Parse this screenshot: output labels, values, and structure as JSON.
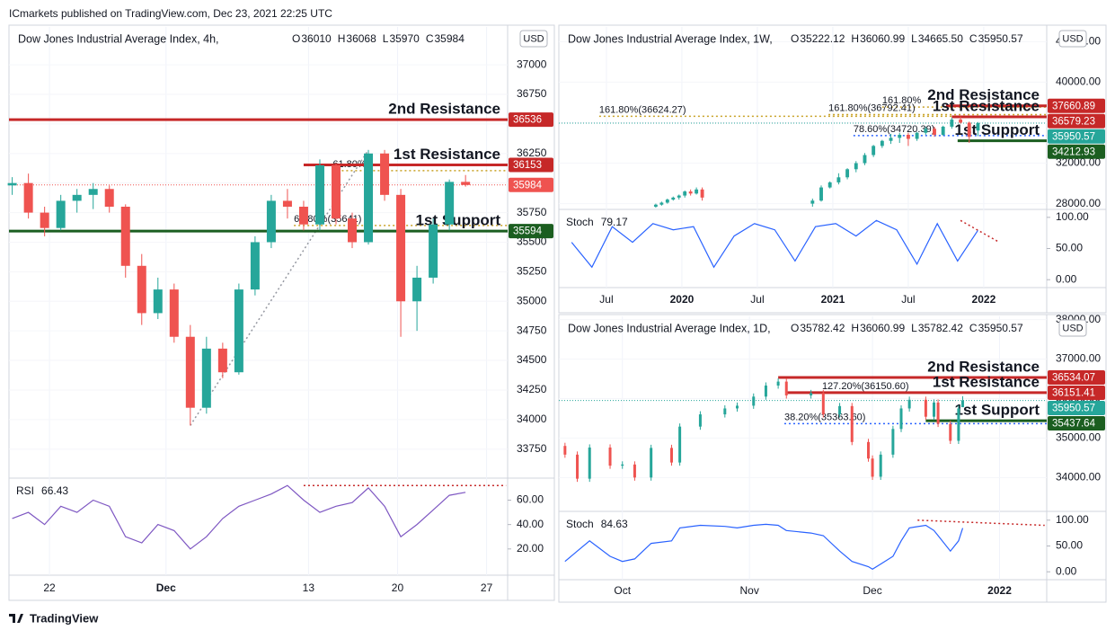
{
  "header": "ICmarkets published on TradingView.com, Dec 23, 2021 22:25 UTC",
  "brand": "TradingView",
  "chart_data": [
    {
      "type": "candlestick",
      "title": "Dow Jones Industrial Average Index, 4h,",
      "ohlc": [
        {
          "key": "O",
          "value": 36010
        },
        {
          "key": "H",
          "value": 36068
        },
        {
          "key": "L",
          "value": 35970
        },
        {
          "key": "C",
          "value": 35984
        }
      ],
      "ohlc_color": "#ef5350",
      "currency": "USD",
      "up_color": "#26a69a",
      "down_color": "#ef5350",
      "x": [
        0,
        1,
        2,
        3,
        4,
        5,
        6,
        7,
        8,
        9,
        10,
        11,
        12,
        13,
        14,
        15,
        16,
        17,
        18,
        19,
        20,
        21,
        22,
        23,
        24,
        25,
        26,
        27,
        28
      ],
      "open": [
        35980,
        36000,
        35750,
        35620,
        35850,
        35900,
        35950,
        35800,
        35300,
        34900,
        35100,
        34700,
        34100,
        34600,
        34400,
        35100,
        35500,
        35850,
        35800,
        35650,
        36150,
        35700,
        35500,
        36250,
        35900,
        35000,
        35200,
        35650,
        36010
      ],
      "high": [
        36050,
        36080,
        35800,
        35900,
        35950,
        36000,
        35980,
        35820,
        35400,
        35200,
        35150,
        34800,
        34700,
        34650,
        35150,
        35550,
        35900,
        35950,
        35850,
        36200,
        36170,
        35750,
        36280,
        36280,
        35950,
        35300,
        35700,
        36030,
        36068
      ],
      "low": [
        35900,
        35700,
        35550,
        35600,
        35750,
        35780,
        35750,
        35200,
        34800,
        34850,
        34650,
        33950,
        34050,
        34350,
        34380,
        35050,
        35450,
        35700,
        35600,
        35600,
        35650,
        35450,
        35480,
        35850,
        34700,
        34750,
        35150,
        35600,
        35970
      ],
      "close": [
        36000,
        35750,
        35620,
        35850,
        35900,
        35950,
        35800,
        35300,
        34900,
        35100,
        34700,
        34100,
        34600,
        34400,
        35100,
        35500,
        35850,
        35800,
        35650,
        36150,
        35700,
        35500,
        36250,
        35900,
        35000,
        35200,
        35650,
        36010,
        35984
      ],
      "xlim": [
        -0.2,
        30.6
      ],
      "xticks": [
        {
          "value": 2.3,
          "label": "22"
        },
        {
          "value": 9.5,
          "label": "Dec",
          "bold": true
        },
        {
          "value": 18.3,
          "label": "13"
        },
        {
          "value": 23.8,
          "label": "20"
        },
        {
          "value": 29.3,
          "label": "27"
        }
      ],
      "ylim": [
        33520,
        37320
      ],
      "yticks": [
        33750,
        34000,
        34250,
        34500,
        34750,
        35000,
        35250,
        35500,
        35750,
        36000,
        36250,
        36500,
        36750,
        37000
      ],
      "levels": [
        {
          "name": "2nd Resistance",
          "value": 36536,
          "color": "#c62828",
          "x": -0.2
        },
        {
          "name": "1st Resistance",
          "value": 36153,
          "color": "#c62828",
          "x": 18
        },
        {
          "name": "1st Support",
          "value": 35594,
          "color": "#1b5e20",
          "x": -0.2
        }
      ],
      "price": {
        "value": 35984,
        "color": "#ef5350"
      },
      "fibs": [
        {
          "value": 36105,
          "label": "61.80%",
          "x": 19.8,
          "color": "#c9a227"
        },
        {
          "value": 35641,
          "label": "61.80%(35641)",
          "x": 17.4,
          "color": "#c9a227"
        }
      ],
      "swing": {
        "x": [
          11,
          22
        ],
        "values": [
          33950,
          36280
        ]
      },
      "indicator": {
        "name": "RSI",
        "value": 66.43,
        "color": "#7e57c2",
        "x": [
          0,
          1,
          2,
          3,
          4,
          5,
          6,
          7,
          8,
          9,
          10,
          11,
          12,
          13,
          14,
          15,
          16,
          17,
          18,
          19,
          20,
          21,
          22,
          23,
          24,
          25,
          26,
          27,
          28
        ],
        "values": [
          45,
          50,
          40,
          55,
          50,
          60,
          55,
          30,
          25,
          40,
          35,
          20,
          30,
          45,
          55,
          60,
          65,
          72,
          60,
          50,
          55,
          58,
          70,
          55,
          30,
          40,
          52,
          64,
          66.43
        ],
        "ylim": [
          -1.5,
          77.3
        ],
        "yticks": [
          {
            "value": 20,
            "label": "20.00"
          },
          {
            "value": 40,
            "label": "40.00"
          },
          {
            "value": 60,
            "label": "60.00"
          }
        ],
        "trendline": {
          "x": [
            18,
            30.5
          ],
          "values": [
            72,
            72
          ],
          "color": "#c62828"
        }
      }
    },
    {
      "type": "candlestick",
      "title": "Dow Jones Industrial Average Index, 1W,",
      "ohlc": [
        {
          "key": "O",
          "value": 35222.12
        },
        {
          "key": "H",
          "value": 36060.99
        },
        {
          "key": "L",
          "value": 34665.5,
          "label": "34665.50"
        },
        {
          "key": "C",
          "value": 35950.57
        }
      ],
      "ohlc_color": "#26a69a",
      "currency": "USD",
      "up_color": "#26a69a",
      "down_color": "#ef5350",
      "x": [
        17,
        19,
        21,
        23,
        25,
        27,
        29,
        31,
        33,
        71,
        74,
        77,
        80,
        83,
        86,
        89,
        92,
        95,
        98,
        101,
        104,
        107,
        110,
        113,
        116,
        119,
        122,
        125,
        128
      ],
      "open": [
        27700,
        27900,
        28100,
        28400,
        28600,
        28800,
        29200,
        29000,
        29400,
        28000,
        28300,
        29600,
        30100,
        30600,
        31400,
        32000,
        32800,
        33700,
        34200,
        34500,
        34800,
        34400,
        35000,
        35400,
        34800,
        35600,
        36300,
        36000,
        35222.12
      ],
      "high": [
        28000,
        28200,
        28500,
        28700,
        28900,
        29300,
        29400,
        29600,
        29600,
        28500,
        29800,
        30200,
        31000,
        31500,
        32200,
        33000,
        33800,
        34300,
        34900,
        35000,
        35000,
        35100,
        35600,
        35600,
        35700,
        36500,
        36600,
        36100,
        36060.99
      ],
      "low": [
        27600,
        27800,
        28000,
        28300,
        28400,
        28600,
        28800,
        28900,
        28300,
        27700,
        28200,
        29500,
        29900,
        30400,
        31100,
        31800,
        32600,
        33500,
        33900,
        34000,
        33700,
        34200,
        34800,
        34600,
        34700,
        35400,
        35900,
        34000,
        34665.5
      ],
      "close": [
        27900,
        28100,
        28400,
        28600,
        28800,
        29200,
        29000,
        29400,
        28600,
        28300,
        29600,
        30100,
        30600,
        31400,
        32000,
        32800,
        33700,
        34200,
        34500,
        34800,
        34400,
        35000,
        35400,
        34800,
        35600,
        36300,
        36000,
        34600,
        35950.57
      ],
      "xlim": [
        -16.4,
        151.7
      ],
      "xticks": [
        {
          "value": 0,
          "label": "Jul"
        },
        {
          "value": 26,
          "label": "2020",
          "bold": true
        },
        {
          "value": 52,
          "label": "Jul"
        },
        {
          "value": 78,
          "label": "2021",
          "bold": true
        },
        {
          "value": 104,
          "label": "Jul"
        },
        {
          "value": 130,
          "label": "2022",
          "bold": true
        }
      ],
      "ylim": [
        27520,
        45450
      ],
      "yticks": [
        {
          "value": 28000,
          "label": "28000.00"
        },
        {
          "value": 32000,
          "label": "32000.00"
        },
        {
          "value": 36000,
          "label": "36000.00"
        },
        {
          "value": 40000,
          "label": "40000.00"
        },
        {
          "value": 44000,
          "label": "44000.00"
        }
      ],
      "levels": [
        {
          "name": "2nd Resistance",
          "value": 37660.89,
          "color": "#c62828",
          "x": 117
        },
        {
          "name": "1st Resistance",
          "value": 36579.23,
          "color": "#c62828",
          "x": 119
        },
        {
          "name": "1st Support",
          "value": 34212.93,
          "color": "#1b5e20",
          "x": 121
        }
      ],
      "price": {
        "value": 35950.57,
        "color": "#26a69a"
      },
      "fibs": [
        {
          "value": 37540,
          "label": "161.80%",
          "x": 95,
          "color": "#c9a227"
        },
        {
          "value": 36624.27,
          "label": "161.80%(36624.27)",
          "x": -2.5,
          "color": "#c9a227"
        },
        {
          "value": 36792.41,
          "label": "161.80%(36792.41)",
          "x": 76.5,
          "color": "#c9a227"
        },
        {
          "value": 34720.39,
          "label": "78.60%(34720.39)",
          "x": 85.1,
          "color": "#2962ff"
        }
      ],
      "indicator": {
        "name": "Stoch",
        "value": 79.17,
        "color": "#2962ff",
        "x": [
          -12,
          -5,
          2,
          9,
          16,
          23,
          30,
          37,
          44,
          51,
          58,
          65,
          72,
          79,
          86,
          93,
          100,
          107,
          114,
          121,
          128
        ],
        "values": [
          60,
          20,
          85,
          60,
          90,
          80,
          85,
          20,
          70,
          90,
          80,
          30,
          85,
          90,
          70,
          95,
          80,
          25,
          90,
          30,
          79.17
        ],
        "ylim": [
          -12.7,
          111.3
        ],
        "yticks": [
          {
            "value": 0,
            "label": "0.00"
          },
          {
            "value": 50,
            "label": "50.00"
          },
          {
            "value": 100,
            "label": "100.00"
          }
        ],
        "trendline": {
          "x": [
            122,
            135
          ],
          "values": [
            95,
            61
          ],
          "color": "#c62828"
        }
      }
    },
    {
      "type": "candlestick",
      "title": "Dow Jones Industrial Average Index, 1D,",
      "ohlc": [
        {
          "key": "O",
          "value": 35782.42
        },
        {
          "key": "H",
          "value": 36060.99
        },
        {
          "key": "L",
          "value": 35782.42
        },
        {
          "key": "C",
          "value": 35950.57
        }
      ],
      "ohlc_color": "#26a69a",
      "currency": "USD",
      "up_color": "#26a69a",
      "down_color": "#ef5350",
      "x": [
        -14,
        -11,
        -8,
        -3,
        0,
        3,
        7,
        12,
        14,
        19,
        25,
        28,
        32,
        35,
        38,
        40,
        46,
        49,
        53,
        56,
        60,
        61,
        63,
        66,
        68,
        70,
        74,
        76,
        77,
        80,
        82,
        83
      ],
      "open": [
        34800,
        34580,
        33970,
        34760,
        34300,
        34330,
        34000,
        34750,
        34380,
        35290,
        35600,
        35750,
        35820,
        36050,
        36330,
        36430,
        36080,
        36140,
        35600,
        35810,
        34900,
        34480,
        34020,
        34580,
        35230,
        35750,
        35970,
        35540,
        35900,
        35360,
        34930,
        35782.42
      ],
      "high": [
        34880,
        34660,
        34840,
        34840,
        34410,
        34410,
        34830,
        34830,
        35370,
        35680,
        35830,
        35900,
        36130,
        36410,
        36510,
        36510,
        36220,
        36220,
        35890,
        35890,
        34980,
        34560,
        34660,
        35310,
        35830,
        36050,
        36050,
        35980,
        35980,
        35440,
        35830,
        36060.99
      ],
      "low": [
        34500,
        33890,
        33890,
        34220,
        34220,
        33920,
        33920,
        34300,
        34300,
        35210,
        35520,
        35670,
        35740,
        35970,
        36250,
        36000,
        36000,
        35520,
        35520,
        34820,
        34400,
        33940,
        33940,
        34500,
        35150,
        35670,
        35460,
        35460,
        35280,
        34850,
        34850,
        35782.42
      ],
      "close": [
        34580,
        33970,
        34760,
        34300,
        34330,
        34000,
        34750,
        34380,
        35290,
        35600,
        35750,
        35820,
        36050,
        36330,
        36430,
        36080,
        36140,
        35600,
        35810,
        34900,
        34480,
        34020,
        34580,
        35230,
        35750,
        35970,
        35540,
        35900,
        35360,
        34930,
        35750,
        35950.57
      ],
      "xlim": [
        -15.5,
        103.5
      ],
      "xticks": [
        {
          "value": 0,
          "label": "Oct"
        },
        {
          "value": 31,
          "label": "Nov"
        },
        {
          "value": 61,
          "label": "Dec"
        },
        {
          "value": 92,
          "label": "2022",
          "bold": true
        }
      ],
      "ylim": [
        33165,
        38083
      ],
      "yticks": [
        {
          "value": 34000,
          "label": "34000.00"
        },
        {
          "value": 35000,
          "label": "35000.00"
        },
        {
          "value": 36000,
          "label": "36000.00"
        },
        {
          "value": 37000,
          "label": "37000.00"
        },
        {
          "value": 38000,
          "label": "38000.00"
        }
      ],
      "levels": [
        {
          "name": "2nd Resistance",
          "value": 36534.07,
          "color": "#c62828",
          "x": 38
        },
        {
          "name": "1st Resistance",
          "value": 36151.41,
          "color": "#c62828",
          "x": 40
        },
        {
          "name": "1st Support",
          "value": 35437.64,
          "color": "#1b5e20",
          "x": 74
        }
      ],
      "price": {
        "value": 35950.57,
        "color": "#26a69a"
      },
      "fibs": [
        {
          "value": 36150.6,
          "label": "127.20%(36150.60)",
          "x": 48.7,
          "color": "#2962ff"
        },
        {
          "value": 35363.6,
          "label": "38.20%(35363.60)",
          "x": 39.5,
          "color": "#2962ff"
        }
      ],
      "indicator": {
        "name": "Stoch",
        "value": 84.63,
        "color": "#2962ff",
        "x": [
          -14,
          -11,
          -8,
          -3,
          0,
          3,
          7,
          12,
          14,
          19,
          25,
          28,
          32,
          35,
          38,
          40,
          46,
          49,
          53,
          56,
          60,
          61,
          63,
          66,
          68,
          70,
          74,
          76,
          77,
          80,
          82,
          83
        ],
        "values": [
          20,
          40,
          60,
          30,
          20,
          25,
          55,
          60,
          85,
          90,
          88,
          85,
          90,
          92,
          90,
          80,
          75,
          70,
          40,
          20,
          10,
          5,
          15,
          30,
          60,
          85,
          90,
          80,
          70,
          40,
          60,
          84.63
        ],
        "ylim": [
          -15.3,
          115.3
        ],
        "yticks": [
          {
            "value": 0,
            "label": "0.00"
          },
          {
            "value": 50,
            "label": "50.00"
          },
          {
            "value": 100,
            "label": "100.00"
          }
        ],
        "trendline": {
          "x": [
            72,
            103
          ],
          "values": [
            100,
            90
          ],
          "color": "#c62828"
        }
      }
    }
  ]
}
